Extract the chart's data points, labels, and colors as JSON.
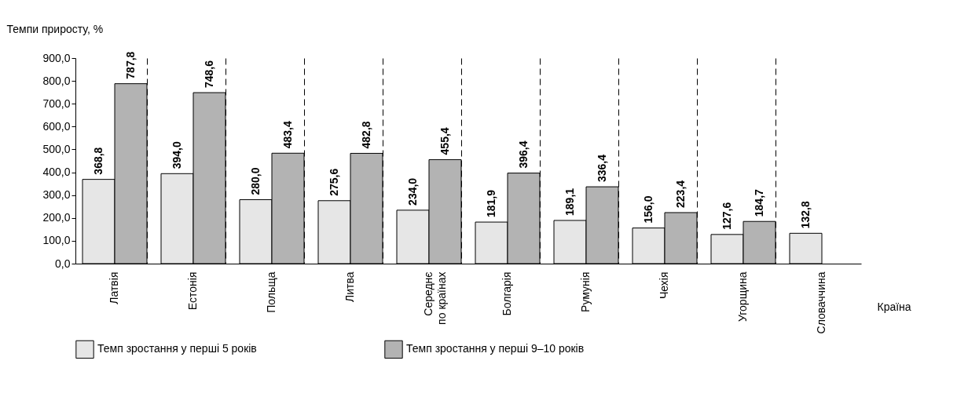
{
  "chart_data": {
    "type": "bar",
    "ylabel": "Темпи приросту, %",
    "xlabel": "Країна",
    "categories": [
      "Латвія",
      "Естонія",
      "Польща",
      "Литва",
      "Середнє по країнах",
      "Болгарія",
      "Румунія",
      "Чехія",
      "Угорщина",
      "Словаччина"
    ],
    "series": [
      {
        "name": "Темп зростання у перші 5 років",
        "color": "#e6e6e6",
        "values": [
          368.8,
          394.0,
          280.0,
          275.6,
          234.0,
          181.9,
          189.1,
          156.0,
          127.6,
          132.8
        ],
        "value_labels": [
          "368,8",
          "394,0",
          "280,0",
          "275,6",
          "234,0",
          "181,9",
          "189,1",
          "156,0",
          "127,6",
          "132,8"
        ]
      },
      {
        "name": "Темп зростання у перші 9–10 років",
        "color": "#b3b3b3",
        "values": [
          787.8,
          748.6,
          483.4,
          482.8,
          455.4,
          396.4,
          336.4,
          223.4,
          184.7,
          null
        ],
        "value_labels": [
          "787,8",
          "748,6",
          "483,4",
          "482,8",
          "455,4",
          "396,4",
          "336,4",
          "223,4",
          "184,7",
          null
        ]
      }
    ],
    "ylim": [
      0,
      900
    ],
    "yticks": [
      {
        "value": 0,
        "label": "0,0"
      },
      {
        "value": 100,
        "label": "100,0"
      },
      {
        "value": 200,
        "label": "200,0"
      },
      {
        "value": 300,
        "label": "300,0"
      },
      {
        "value": 400,
        "label": "400,0"
      },
      {
        "value": 500,
        "label": "500,0"
      },
      {
        "value": 600,
        "label": "600,0"
      },
      {
        "value": 700,
        "label": "700,0"
      },
      {
        "value": 800,
        "label": "800,0"
      },
      {
        "value": 900,
        "label": "900,0"
      }
    ],
    "grid": "x",
    "legend": "bottom"
  }
}
